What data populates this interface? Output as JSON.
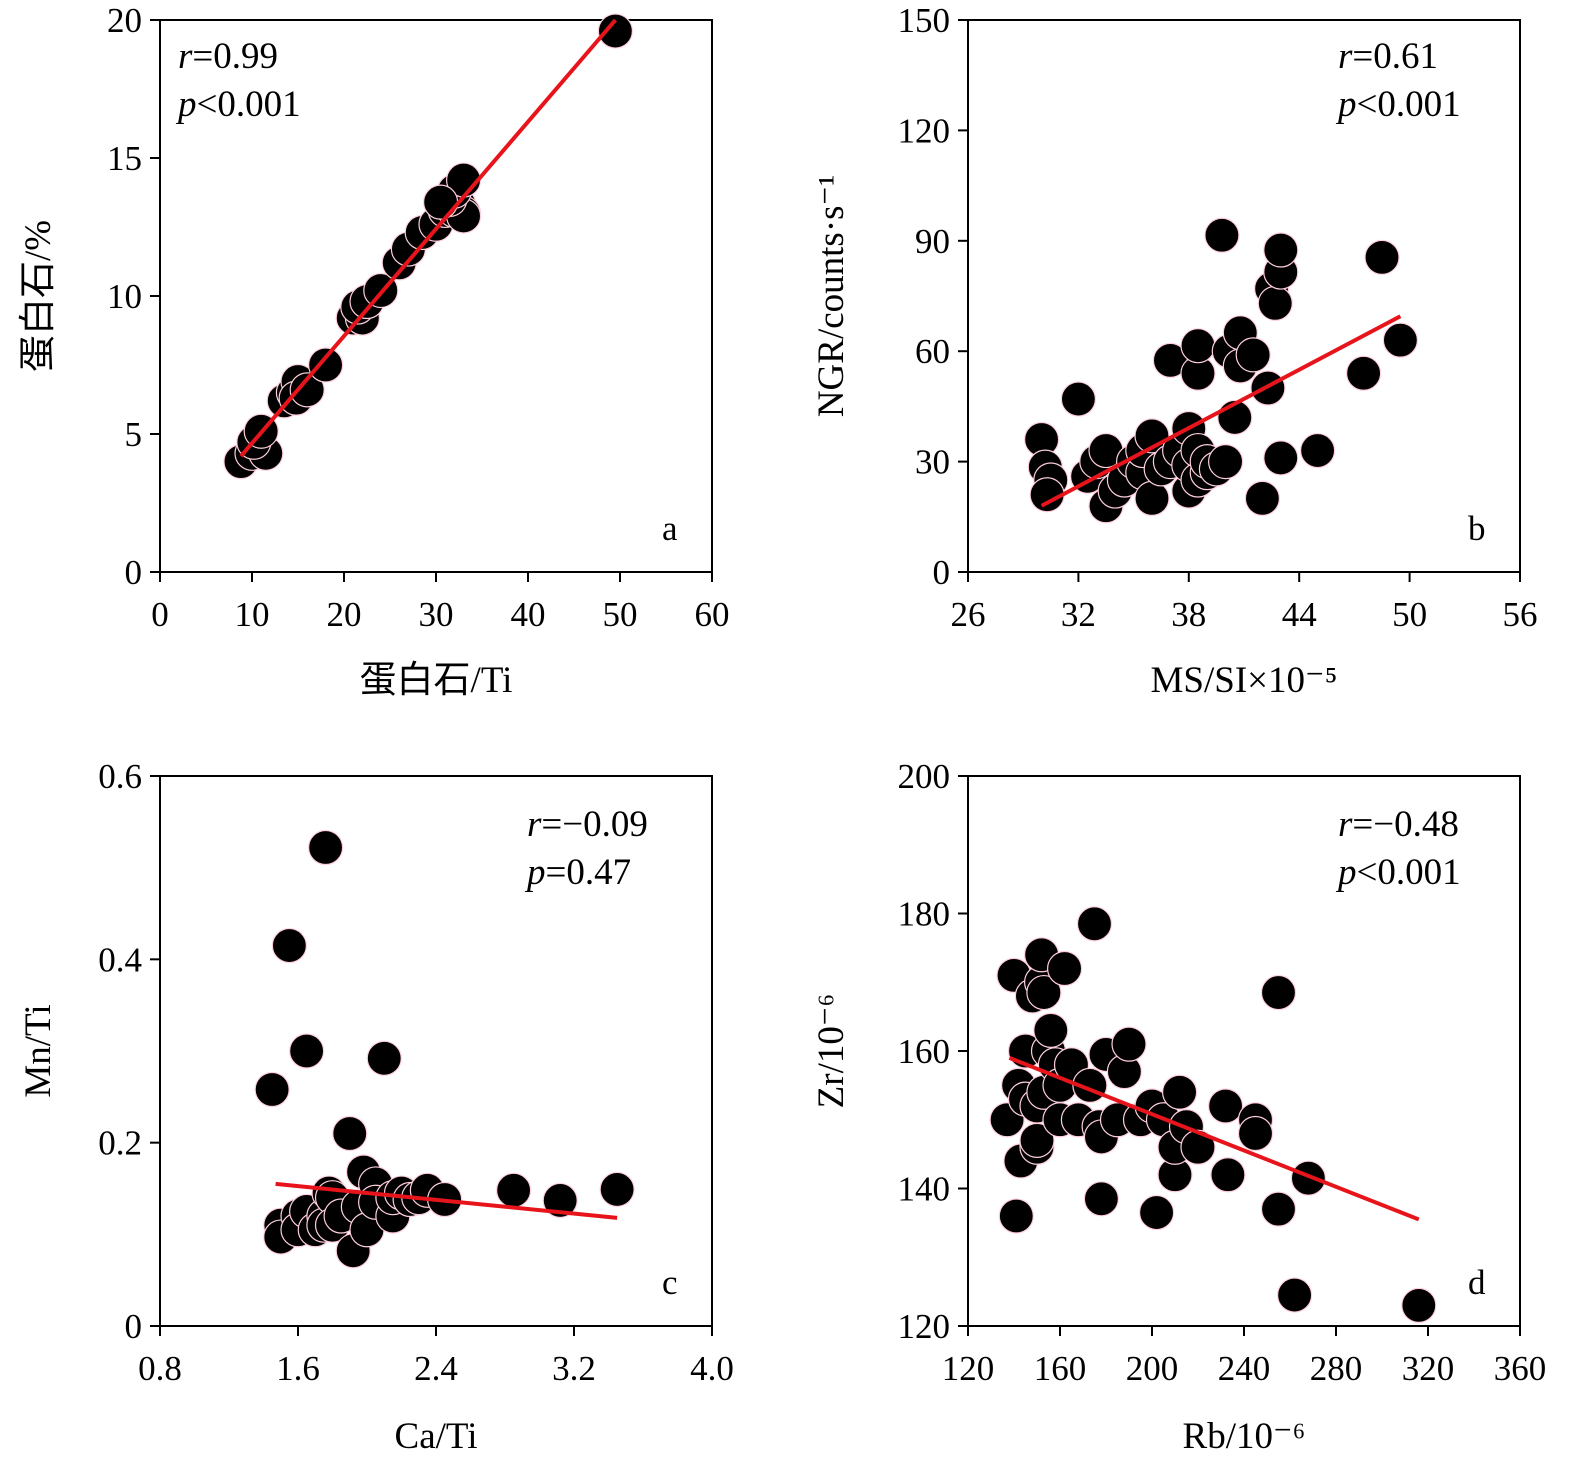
{
  "colors": {
    "marker_fill": "#000000",
    "marker_edge": "#ffd0dc",
    "fit_line": "#e8141c",
    "axis": "#000000"
  },
  "chart_data": [
    {
      "id": "a",
      "type": "scatter",
      "panel_letter": "a",
      "stats": {
        "r_var": "r",
        "r_val": "=0.99",
        "p_var": "p",
        "p_val": "<0.001"
      },
      "xlabel": "蛋白石/Ti",
      "ylabel": "蛋白石/%",
      "xlim": [
        0,
        60
      ],
      "ylim": [
        0,
        20
      ],
      "xticks": [
        0,
        10,
        20,
        30,
        40,
        50,
        60
      ],
      "yticks": [
        0,
        5,
        10,
        15,
        20
      ],
      "xtick_labels": [
        "0",
        "10",
        "20",
        "30",
        "40",
        "50",
        "60"
      ],
      "ytick_labels": [
        "0",
        "5",
        "10",
        "15",
        "20"
      ],
      "fit_line": [
        [
          8.8,
          4.2
        ],
        [
          49.5,
          20.0
        ]
      ],
      "points": [
        [
          8.8,
          4.0
        ],
        [
          10.0,
          4.3
        ],
        [
          11.5,
          4.3
        ],
        [
          10.2,
          4.7
        ],
        [
          11.0,
          5.1
        ],
        [
          13.5,
          6.2
        ],
        [
          14.5,
          6.5
        ],
        [
          15.0,
          6.9
        ],
        [
          14.8,
          6.3
        ],
        [
          16.0,
          6.6
        ],
        [
          18.0,
          7.5
        ],
        [
          21.0,
          9.2
        ],
        [
          22.0,
          9.2
        ],
        [
          21.5,
          9.6
        ],
        [
          22.5,
          9.8
        ],
        [
          24.0,
          10.2
        ],
        [
          26.0,
          11.2
        ],
        [
          27.0,
          11.7
        ],
        [
          28.5,
          12.3
        ],
        [
          30.0,
          12.6
        ],
        [
          31.0,
          13.1
        ],
        [
          32.0,
          13.1
        ],
        [
          32.5,
          13.3
        ],
        [
          33.0,
          13.0
        ],
        [
          33.0,
          12.9
        ],
        [
          31.5,
          13.5
        ],
        [
          32.0,
          13.8
        ],
        [
          33.0,
          14.2
        ],
        [
          30.5,
          13.4
        ],
        [
          49.5,
          19.6
        ]
      ]
    },
    {
      "id": "b",
      "type": "scatter",
      "panel_letter": "b",
      "stats": {
        "r_var": "r",
        "r_val": "=0.61",
        "p_var": "p",
        "p_val": "<0.001"
      },
      "xlabel": "MS/SI×10⁻⁵",
      "ylabel": "NGR/counts·s⁻¹",
      "xlim": [
        26,
        56
      ],
      "ylim": [
        0,
        150
      ],
      "xticks": [
        26,
        32,
        38,
        44,
        50,
        56
      ],
      "yticks": [
        0,
        30,
        60,
        90,
        120,
        150
      ],
      "xtick_labels": [
        "26",
        "32",
        "38",
        "44",
        "50",
        "56"
      ],
      "ytick_labels": [
        "0",
        "30",
        "60",
        "90",
        "120",
        "150"
      ],
      "fit_line": [
        [
          30.0,
          18.0
        ],
        [
          49.5,
          69.5
        ]
      ],
      "points": [
        [
          30.0,
          36.0
        ],
        [
          30.2,
          28.5
        ],
        [
          30.5,
          25.0
        ],
        [
          30.3,
          21.0
        ],
        [
          32.0,
          47.0
        ],
        [
          32.5,
          26.0
        ],
        [
          33.0,
          30.0
        ],
        [
          33.5,
          33.0
        ],
        [
          33.5,
          18.0
        ],
        [
          34.0,
          22.0
        ],
        [
          34.5,
          25.0
        ],
        [
          35.0,
          30.0
        ],
        [
          35.5,
          27.0
        ],
        [
          35.5,
          33.0
        ],
        [
          36.0,
          37.0
        ],
        [
          36.0,
          20.0
        ],
        [
          36.5,
          28.0
        ],
        [
          37.0,
          57.5
        ],
        [
          37.0,
          30.0
        ],
        [
          37.5,
          33.0
        ],
        [
          38.0,
          39.0
        ],
        [
          38.0,
          22.0
        ],
        [
          38.0,
          29.0
        ],
        [
          38.5,
          54.0
        ],
        [
          38.5,
          25.0
        ],
        [
          38.5,
          33.0
        ],
        [
          38.5,
          61.5
        ],
        [
          39.0,
          27.0
        ],
        [
          39.0,
          30.0
        ],
        [
          39.5,
          28.0
        ],
        [
          40.0,
          30.0
        ],
        [
          39.8,
          91.5
        ],
        [
          40.2,
          60.0
        ],
        [
          40.5,
          42.0
        ],
        [
          40.8,
          56.0
        ],
        [
          40.8,
          65.0
        ],
        [
          41.5,
          59.0
        ],
        [
          42.0,
          20.0
        ],
        [
          42.3,
          50.0
        ],
        [
          42.5,
          77.0
        ],
        [
          42.7,
          73.0
        ],
        [
          43.0,
          31.0
        ],
        [
          43.0,
          81.5
        ],
        [
          43.0,
          87.5
        ],
        [
          45.0,
          33.0
        ],
        [
          47.5,
          54.0
        ],
        [
          48.5,
          85.5
        ],
        [
          49.5,
          63.0
        ]
      ]
    },
    {
      "id": "c",
      "type": "scatter",
      "panel_letter": "c",
      "stats": {
        "r_var": "r",
        "r_val": "=−0.09",
        "p_var": "p",
        "p_val": "=0.47"
      },
      "xlabel": "Ca/Ti",
      "ylabel": "Mn/Ti",
      "xlim": [
        0.8,
        4.0
      ],
      "ylim": [
        0,
        0.6
      ],
      "xticks": [
        0.8,
        1.6,
        2.4,
        3.2,
        4.0
      ],
      "yticks": [
        0,
        0.2,
        0.4,
        0.6
      ],
      "xtick_labels": [
        "0.8",
        "1.6",
        "2.4",
        "3.2",
        "4.0"
      ],
      "ytick_labels": [
        "0",
        "0.2",
        "0.4",
        "0.6"
      ],
      "fit_line": [
        [
          1.47,
          0.155
        ],
        [
          3.45,
          0.118
        ]
      ],
      "points": [
        [
          1.45,
          0.258
        ],
        [
          1.5,
          0.11
        ],
        [
          1.5,
          0.097
        ],
        [
          1.55,
          0.415
        ],
        [
          1.6,
          0.12
        ],
        [
          1.6,
          0.105
        ],
        [
          1.65,
          0.3
        ],
        [
          1.65,
          0.125
        ],
        [
          1.7,
          0.105
        ],
        [
          1.75,
          0.12
        ],
        [
          1.75,
          0.11
        ],
        [
          1.76,
          0.522
        ],
        [
          1.78,
          0.145
        ],
        [
          1.8,
          0.14
        ],
        [
          1.8,
          0.11
        ],
        [
          1.85,
          0.12
        ],
        [
          1.9,
          0.21
        ],
        [
          1.92,
          0.082
        ],
        [
          1.95,
          0.13
        ],
        [
          1.98,
          0.168
        ],
        [
          2.0,
          0.105
        ],
        [
          2.05,
          0.155
        ],
        [
          2.05,
          0.135
        ],
        [
          2.1,
          0.292
        ],
        [
          2.15,
          0.12
        ],
        [
          2.15,
          0.14
        ],
        [
          2.2,
          0.145
        ],
        [
          2.25,
          0.138
        ],
        [
          2.3,
          0.14
        ],
        [
          2.35,
          0.148
        ],
        [
          2.45,
          0.138
        ],
        [
          2.85,
          0.148
        ],
        [
          3.12,
          0.137
        ],
        [
          3.45,
          0.149
        ]
      ]
    },
    {
      "id": "d",
      "type": "scatter",
      "panel_letter": "d",
      "stats": {
        "r_var": "r",
        "r_val": "=−0.48",
        "p_var": "p",
        "p_val": "<0.001"
      },
      "xlabel": "Rb/10⁻⁶",
      "ylabel": "Zr/10⁻⁶",
      "xlim": [
        120,
        360
      ],
      "ylim": [
        120,
        200
      ],
      "xticks": [
        120,
        160,
        200,
        240,
        280,
        320,
        360
      ],
      "yticks": [
        120,
        140,
        160,
        180,
        200
      ],
      "xtick_labels": [
        "120",
        "160",
        "200",
        "240",
        "280",
        "320",
        "360"
      ],
      "ytick_labels": [
        "120",
        "140",
        "160",
        "180",
        "200"
      ],
      "fit_line": [
        [
          138.0,
          159.0
        ],
        [
          316.0,
          135.5
        ]
      ],
      "points": [
        [
          137.0,
          150.0
        ],
        [
          140.0,
          171.0
        ],
        [
          141.0,
          136.0
        ],
        [
          142.0,
          155.0
        ],
        [
          143.0,
          144.0
        ],
        [
          145.0,
          153.0
        ],
        [
          145.0,
          160.0
        ],
        [
          148.0,
          168.0
        ],
        [
          150.0,
          152.0
        ],
        [
          150.0,
          146.0
        ],
        [
          150.0,
          147.0
        ],
        [
          152.0,
          170.0
        ],
        [
          152.0,
          174.0
        ],
        [
          153.0,
          154.0
        ],
        [
          153.0,
          168.5
        ],
        [
          155.0,
          160.0
        ],
        [
          156.0,
          163.0
        ],
        [
          158.0,
          158.0
        ],
        [
          160.0,
          150.0
        ],
        [
          160.0,
          155.0
        ],
        [
          162.0,
          172.0
        ],
        [
          165.0,
          158.0
        ],
        [
          168.0,
          150.0
        ],
        [
          173.0,
          155.0
        ],
        [
          175.0,
          178.5
        ],
        [
          177.0,
          149.0
        ],
        [
          178.0,
          147.5
        ],
        [
          178.0,
          138.5
        ],
        [
          180.0,
          159.5
        ],
        [
          185.0,
          150.0
        ],
        [
          188.0,
          157.0
        ],
        [
          190.0,
          161.0
        ],
        [
          195.0,
          150.0
        ],
        [
          200.0,
          152.0
        ],
        [
          202.0,
          136.5
        ],
        [
          205.0,
          150.0
        ],
        [
          210.0,
          142.0
        ],
        [
          210.0,
          146.0
        ],
        [
          212.0,
          154.0
        ],
        [
          215.0,
          149.0
        ],
        [
          220.0,
          146.0
        ],
        [
          232.0,
          152.0
        ],
        [
          233.0,
          142.0
        ],
        [
          245.0,
          150.0
        ],
        [
          245.0,
          148.0
        ],
        [
          255.0,
          168.5
        ],
        [
          255.0,
          137.0
        ],
        [
          262.0,
          124.5
        ],
        [
          268.0,
          141.5
        ],
        [
          316.0,
          123.0
        ]
      ]
    }
  ]
}
